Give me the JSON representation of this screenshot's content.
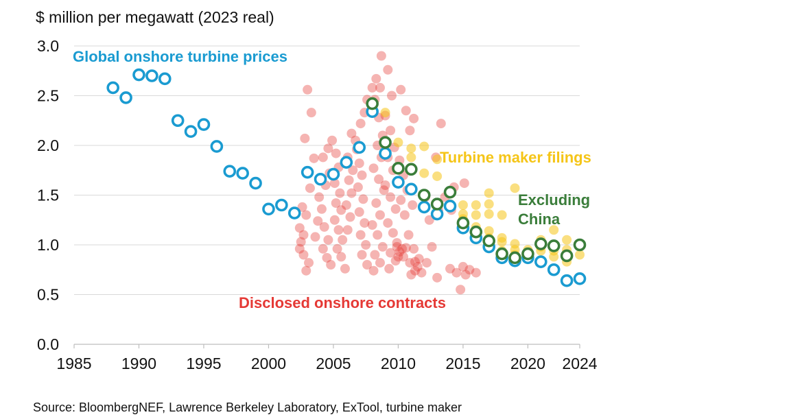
{
  "chart_data": {
    "type": "scatter",
    "ylabel": "$ million per megawatt (2023 real)",
    "ylim": [
      0,
      3.0
    ],
    "xlim": [
      1985,
      2024
    ],
    "xticks": [
      1985,
      1990,
      1995,
      2000,
      2005,
      2010,
      2015,
      2020,
      2024
    ],
    "yticks": [
      "0.0",
      "0.5",
      "1.0",
      "1.5",
      "2.0",
      "2.5",
      "3.0"
    ],
    "grid": "horizontal",
    "annotations": {
      "global": "Global onshore turbine prices",
      "filings": "Turbine maker filings",
      "excl1": "Excluding",
      "excl2": "China",
      "contracts": "Disclosed onshore contracts"
    },
    "series": [
      {
        "name": "Global onshore turbine prices",
        "color": "#1a9bd1",
        "marker": "open-circle",
        "points": [
          [
            1988,
            2.58
          ],
          [
            1989,
            2.48
          ],
          [
            1990,
            2.71
          ],
          [
            1991,
            2.7
          ],
          [
            1992,
            2.67
          ],
          [
            1993,
            2.25
          ],
          [
            1994,
            2.14
          ],
          [
            1995,
            2.21
          ],
          [
            1996,
            1.99
          ],
          [
            1997,
            1.74
          ],
          [
            1998,
            1.72
          ],
          [
            1999,
            1.62
          ],
          [
            2000,
            1.36
          ],
          [
            2001,
            1.4
          ],
          [
            2002,
            1.32
          ],
          [
            2003,
            1.73
          ],
          [
            2004,
            1.66
          ],
          [
            2005,
            1.71
          ],
          [
            2006,
            1.83
          ],
          [
            2007,
            1.98
          ],
          [
            2008,
            2.34
          ],
          [
            2009,
            1.92
          ],
          [
            2010,
            1.63
          ],
          [
            2011,
            1.56
          ],
          [
            2012,
            1.38
          ],
          [
            2013,
            1.31
          ],
          [
            2014,
            1.39
          ],
          [
            2015,
            1.17
          ],
          [
            2016,
            1.07
          ],
          [
            2017,
            0.98
          ],
          [
            2018,
            0.87
          ],
          [
            2019,
            0.84
          ],
          [
            2020,
            0.87
          ],
          [
            2021,
            0.83
          ],
          [
            2022,
            0.75
          ],
          [
            2023,
            0.64
          ],
          [
            2024,
            0.66
          ]
        ]
      },
      {
        "name": "Excluding China",
        "color": "#3a7d3a",
        "marker": "open-circle",
        "points": [
          [
            2008,
            2.42
          ],
          [
            2009,
            2.03
          ],
          [
            2010,
            1.77
          ],
          [
            2011,
            1.76
          ],
          [
            2012,
            1.5
          ],
          [
            2013,
            1.41
          ],
          [
            2014,
            1.53
          ],
          [
            2015,
            1.22
          ],
          [
            2016,
            1.13
          ],
          [
            2017,
            1.04
          ],
          [
            2018,
            0.91
          ],
          [
            2019,
            0.87
          ],
          [
            2020,
            0.91
          ],
          [
            2021,
            1.01
          ],
          [
            2022,
            0.99
          ],
          [
            2023,
            0.89
          ],
          [
            2024,
            1.0
          ]
        ]
      },
      {
        "name": "Turbine maker filings",
        "color": "#f5c518",
        "marker": "dot",
        "points": [
          [
            2009,
            2.33
          ],
          [
            2010,
            2.03
          ],
          [
            2011,
            1.88
          ],
          [
            2011,
            1.97
          ],
          [
            2012,
            1.99
          ],
          [
            2012,
            1.72
          ],
          [
            2013,
            1.69
          ],
          [
            2013,
            1.86
          ],
          [
            2014,
            1.52
          ],
          [
            2014,
            1.41
          ],
          [
            2015,
            1.4
          ],
          [
            2015,
            1.31
          ],
          [
            2015,
            1.26
          ],
          [
            2016,
            1.4
          ],
          [
            2016,
            1.3
          ],
          [
            2016,
            1.18
          ],
          [
            2016,
            1.12
          ],
          [
            2017,
            1.52
          ],
          [
            2017,
            1.41
          ],
          [
            2017,
            1.31
          ],
          [
            2017,
            1.14
          ],
          [
            2017,
            1.07
          ],
          [
            2018,
            1.3
          ],
          [
            2018,
            1.07
          ],
          [
            2018,
            1.03
          ],
          [
            2018,
            0.94
          ],
          [
            2019,
            1.57
          ],
          [
            2019,
            1.01
          ],
          [
            2019,
            0.95
          ],
          [
            2019,
            0.9
          ],
          [
            2020,
            0.95
          ],
          [
            2020,
            0.89
          ],
          [
            2021,
            1.05
          ],
          [
            2021,
            0.98
          ],
          [
            2021,
            0.94
          ],
          [
            2022,
            1.15
          ],
          [
            2022,
            0.99
          ],
          [
            2022,
            0.94
          ],
          [
            2022,
            0.88
          ],
          [
            2023,
            1.05
          ],
          [
            2023,
            0.95
          ],
          [
            2023,
            0.83
          ],
          [
            2024,
            1.01
          ],
          [
            2024,
            0.9
          ]
        ]
      },
      {
        "name": "Disclosed onshore contracts",
        "color": "#e53935",
        "marker": "dot",
        "points": [
          [
            2003,
            2.56
          ],
          [
            2003.3,
            2.33
          ],
          [
            2002.8,
            2.07
          ],
          [
            2003.5,
            1.87
          ],
          [
            2003.2,
            1.57
          ],
          [
            2002.6,
            1.38
          ],
          [
            2002.9,
            1.3
          ],
          [
            2002.4,
            1.17
          ],
          [
            2002.7,
            1.1
          ],
          [
            2002.5,
            1.03
          ],
          [
            2002.4,
            0.96
          ],
          [
            2002.7,
            0.9
          ],
          [
            2003.1,
            0.82
          ],
          [
            2002.9,
            0.74
          ],
          [
            2003.6,
            1.08
          ],
          [
            2003.8,
            1.24
          ],
          [
            2004.1,
            1.36
          ],
          [
            2004.3,
            1.18
          ],
          [
            2004.6,
            1.05
          ],
          [
            2004.2,
            0.96
          ],
          [
            2004.5,
            0.87
          ],
          [
            2004.8,
            0.8
          ],
          [
            2003.9,
            1.48
          ],
          [
            2004.4,
            1.6
          ],
          [
            2004.7,
            1.72
          ],
          [
            2004.2,
            1.88
          ],
          [
            2004.6,
            1.97
          ],
          [
            2004.9,
            2.05
          ],
          [
            2005.2,
            1.92
          ],
          [
            2005.4,
            1.78
          ],
          [
            2005.1,
            1.62
          ],
          [
            2005.5,
            1.52
          ],
          [
            2005.2,
            1.42
          ],
          [
            2005.6,
            1.35
          ],
          [
            2005.1,
            1.25
          ],
          [
            2005.4,
            1.15
          ],
          [
            2005.7,
            1.05
          ],
          [
            2005.3,
            0.96
          ],
          [
            2005.6,
            0.88
          ],
          [
            2005.9,
            0.76
          ],
          [
            2006.1,
            1.15
          ],
          [
            2006.3,
            1.28
          ],
          [
            2006.0,
            1.4
          ],
          [
            2006.4,
            1.52
          ],
          [
            2006.2,
            1.65
          ],
          [
            2006.5,
            1.75
          ],
          [
            2006.1,
            1.88
          ],
          [
            2006.7,
            2.05
          ],
          [
            2006.4,
            2.12
          ],
          [
            2006.8,
            1.96
          ],
          [
            2007.0,
            1.82
          ],
          [
            2007.2,
            1.7
          ],
          [
            2006.9,
            1.58
          ],
          [
            2007.3,
            1.46
          ],
          [
            2007.0,
            1.33
          ],
          [
            2007.4,
            1.22
          ],
          [
            2007.1,
            1.1
          ],
          [
            2007.5,
            1.0
          ],
          [
            2007.2,
            0.9
          ],
          [
            2007.6,
            0.8
          ],
          [
            2007.1,
            2.22
          ],
          [
            2007.4,
            2.33
          ],
          [
            2007.6,
            2.46
          ],
          [
            2008.0,
            2.58
          ],
          [
            2008.3,
            2.67
          ],
          [
            2008.6,
            2.58
          ],
          [
            2008.2,
            2.46
          ],
          [
            2008.5,
            2.28
          ],
          [
            2008.8,
            2.1
          ],
          [
            2008.4,
            2.0
          ],
          [
            2008.7,
            1.88
          ],
          [
            2008.1,
            1.77
          ],
          [
            2008.5,
            1.66
          ],
          [
            2008.9,
            1.55
          ],
          [
            2008.3,
            1.42
          ],
          [
            2008.6,
            1.3
          ],
          [
            2008.0,
            1.2
          ],
          [
            2008.4,
            1.1
          ],
          [
            2008.8,
            0.98
          ],
          [
            2008.2,
            0.9
          ],
          [
            2008.6,
            0.82
          ],
          [
            2008.1,
            0.74
          ],
          [
            2008.7,
            2.9
          ],
          [
            2009.2,
            2.76
          ],
          [
            2009.5,
            2.5
          ],
          [
            2009.0,
            2.3
          ],
          [
            2009.4,
            2.15
          ],
          [
            2009.7,
            1.98
          ],
          [
            2009.2,
            1.88
          ],
          [
            2009.6,
            1.75
          ],
          [
            2009.0,
            1.6
          ],
          [
            2009.4,
            1.48
          ],
          [
            2009.8,
            1.36
          ],
          [
            2009.2,
            1.22
          ],
          [
            2009.6,
            1.12
          ],
          [
            2009.9,
            1.02
          ],
          [
            2009.4,
            0.92
          ],
          [
            2009.8,
            0.84
          ],
          [
            2009.3,
            0.76
          ],
          [
            2010.0,
            0.88
          ],
          [
            2010.3,
            0.96
          ],
          [
            2010.1,
            1.85
          ],
          [
            2010.4,
            1.7
          ],
          [
            2010.2,
            1.45
          ],
          [
            2010.5,
            1.3
          ],
          [
            2010.2,
            2.56
          ],
          [
            2010.6,
            2.35
          ],
          [
            2010.9,
            2.15
          ],
          [
            2011.2,
            2.27
          ],
          [
            2010.7,
            1.55
          ],
          [
            2011.1,
            1.4
          ],
          [
            2010.8,
            1.1
          ],
          [
            2011.2,
            0.96
          ],
          [
            2010.9,
            0.82
          ],
          [
            2011.3,
            0.74
          ],
          [
            2011.5,
            0.78
          ],
          [
            2011.8,
            0.72
          ],
          [
            2011.0,
            0.7
          ],
          [
            2012.1,
            1.48
          ],
          [
            2012.4,
            1.25
          ],
          [
            2012.6,
            0.98
          ],
          [
            2012.2,
            0.82
          ],
          [
            2012.9,
            1.88
          ],
          [
            2013.1,
            1.35
          ],
          [
            2013.3,
            2.22
          ],
          [
            2013.0,
            0.67
          ],
          [
            2013.6,
            1.48
          ],
          [
            2014.3,
            1.58
          ],
          [
            2014.1,
            1.35
          ],
          [
            2014.0,
            0.76
          ],
          [
            2014.5,
            0.72
          ],
          [
            2014.8,
            0.55
          ],
          [
            2015.0,
            0.78
          ],
          [
            2015.2,
            0.7
          ],
          [
            2015.5,
            0.75
          ],
          [
            2016.0,
            0.72
          ],
          [
            2015.1,
            1.62
          ],
          [
            2010.1,
            0.93
          ],
          [
            2010.4,
            0.88
          ],
          [
            2009.9,
            0.98
          ],
          [
            2010.6,
            0.97
          ],
          [
            2011.3,
            0.83
          ],
          [
            2011.6,
            0.86
          ]
        ]
      }
    ]
  },
  "source": "Source: BloombergNEF, Lawrence Berkeley Laboratory, ExTool, turbine maker"
}
